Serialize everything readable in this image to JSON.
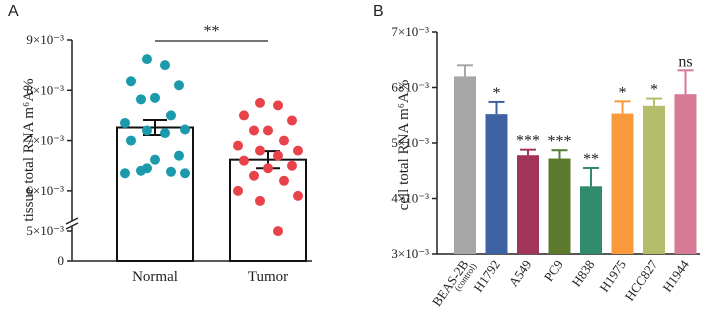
{
  "chart_data": [
    {
      "type": "bar_scatter",
      "panel": "A",
      "ylabel": "tissue total RNA m⁶A%",
      "categories": [
        "Normal",
        "Tumor"
      ],
      "values": [
        0.00726,
        0.00662
      ],
      "errors": [
        0.00015,
        0.00017
      ],
      "points": [
        [
          0.00862,
          0.0085,
          0.00818,
          0.0081,
          0.00785,
          0.00782,
          0.0075,
          0.00735,
          0.00722,
          0.0072,
          0.00715,
          0.007,
          0.0067,
          0.00662,
          0.0064,
          0.00638,
          0.00635,
          0.00635,
          0.00645
        ],
        [
          0.00775,
          0.0077,
          0.0075,
          0.0074,
          0.0072,
          0.0072,
          0.007,
          0.0069,
          0.0068,
          0.0068,
          0.0067,
          0.0066,
          0.0065,
          0.00645,
          0.0063,
          0.0062,
          0.006,
          0.0059,
          0.0058,
          0.0052
        ]
      ],
      "point_colors": [
        "#1a9aaa",
        "#e8434a"
      ],
      "annotation": "**",
      "ylim": [
        0,
        0.009
      ],
      "y_break": [
        0.005,
        0.0055
      ],
      "yticks": [
        0,
        {
          "value": 0.005,
          "label": "5×10⁻³"
        },
        {
          "value": 0.006,
          "label": "6×10⁻³"
        },
        {
          "value": 0.007,
          "label": "7×10⁻³"
        },
        {
          "value": 0.008,
          "label": "8×10⁻³"
        },
        {
          "value": 0.009,
          "label": "9×10⁻³"
        }
      ]
    },
    {
      "type": "bar",
      "panel": "B",
      "ylabel": "cell total RNA m⁶A%",
      "categories": [
        "BEAS-2B",
        "H1792",
        "A549",
        "PC9",
        "H838",
        "H1975",
        "HCC827",
        "H1944"
      ],
      "category_note": "(control)",
      "values": [
        0.0062,
        0.00552,
        0.00478,
        0.00472,
        0.00422,
        0.00553,
        0.00567,
        0.00588
      ],
      "errors": [
        0.0002,
        0.00022,
        0.0001,
        0.00015,
        0.00033,
        0.00022,
        0.00013,
        0.00043
      ],
      "colors": [
        "#a6a6a8",
        "#3f62a3",
        "#a23459",
        "#5c7a2c",
        "#2f8a6e",
        "#f89a3c",
        "#b3bd6c",
        "#d67a95"
      ],
      "annotations": [
        null,
        "*",
        "***",
        "***",
        "**",
        "*",
        "*",
        "ns"
      ],
      "ylim": [
        0.003,
        0.007
      ],
      "yticks": [
        {
          "value": 0.003,
          "label": "3×10⁻³"
        },
        {
          "value": 0.004,
          "label": "4×10⁻³"
        },
        {
          "value": 0.005,
          "label": "5×10⁻³"
        },
        {
          "value": 0.006,
          "label": "6×10⁻³"
        },
        {
          "value": 0.007,
          "label": "7×10⁻³"
        }
      ]
    }
  ]
}
